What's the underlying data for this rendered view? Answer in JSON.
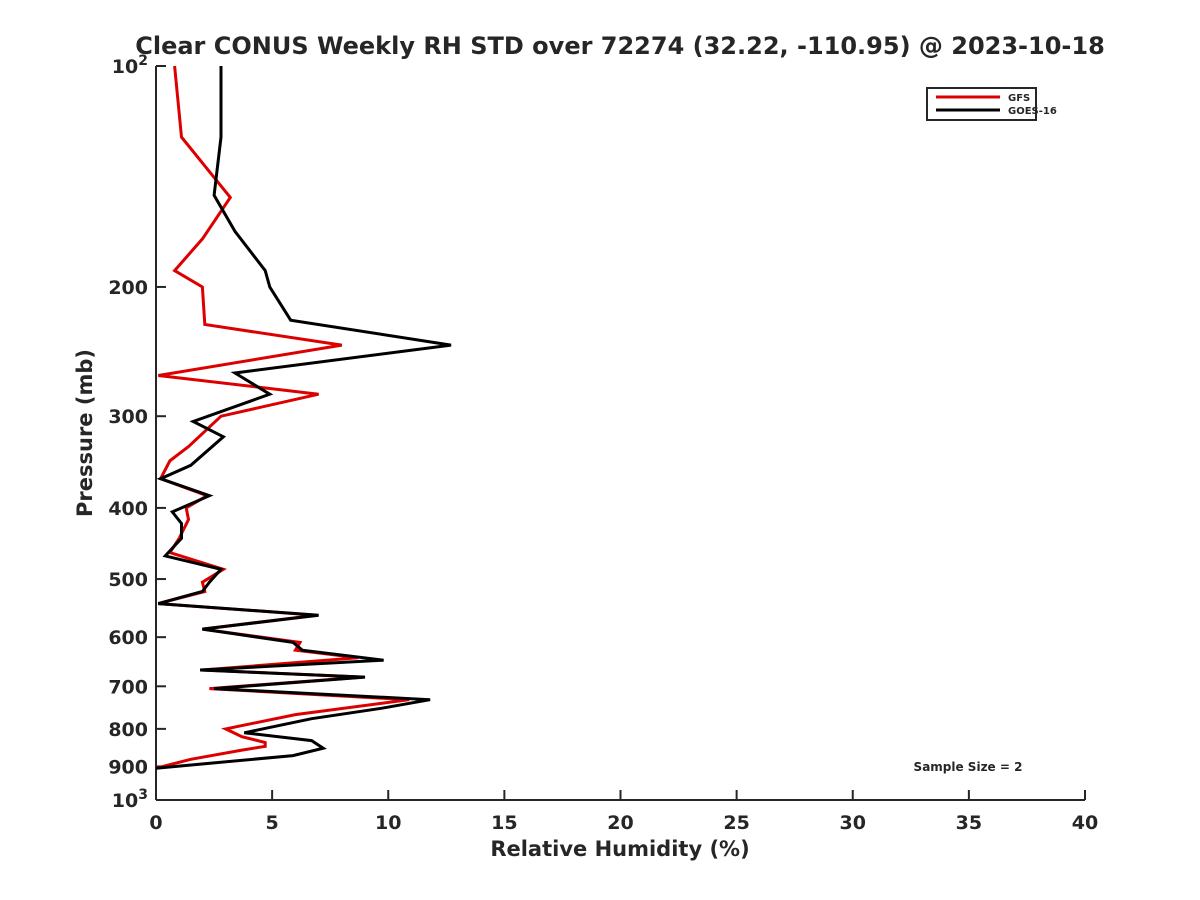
{
  "chart_data": {
    "type": "line",
    "title": "Clear CONUS Weekly RH STD over 72274 (32.22, -110.95) @ 2023-10-18",
    "xlabel": "Relative Humidity (%)",
    "ylabel": "Pressure (mb)",
    "xlim": [
      0,
      40
    ],
    "ylim": [
      100,
      1000
    ],
    "y_scale": "log",
    "y_reversed": true,
    "x_ticks": [
      "0",
      "5",
      "10",
      "15",
      "20",
      "25",
      "30",
      "35",
      "40"
    ],
    "y_ticks": [
      {
        "value": 100,
        "base": "10",
        "exp": "2"
      },
      {
        "value": 200,
        "label": "200"
      },
      {
        "value": 300,
        "label": "300"
      },
      {
        "value": 400,
        "label": "400"
      },
      {
        "value": 500,
        "label": "500"
      },
      {
        "value": 600,
        "label": "600"
      },
      {
        "value": 700,
        "label": "700"
      },
      {
        "value": 800,
        "label": "800"
      },
      {
        "value": 900,
        "label": "900"
      },
      {
        "value": 1000,
        "base": "10",
        "exp": "3"
      }
    ],
    "legend_position": "top-right",
    "annotation": "Sample Size = 2",
    "series": [
      {
        "name": "GFS",
        "color": "#dd0000",
        "points": [
          [
            0.8,
            100
          ],
          [
            1.1,
            125
          ],
          [
            3.2,
            151
          ],
          [
            2.0,
            172
          ],
          [
            0.8,
            190
          ],
          [
            2.0,
            200
          ],
          [
            2.1,
            225
          ],
          [
            8.0,
            240
          ],
          [
            0.1,
            264
          ],
          [
            7.0,
            280
          ],
          [
            2.8,
            300
          ],
          [
            1.4,
            330
          ],
          [
            0.6,
            345
          ],
          [
            0.2,
            365
          ],
          [
            2.2,
            385
          ],
          [
            1.3,
            400
          ],
          [
            1.4,
            415
          ],
          [
            1.0,
            440
          ],
          [
            0.6,
            460
          ],
          [
            2.9,
            485
          ],
          [
            2.0,
            505
          ],
          [
            2.1,
            520
          ],
          [
            0.1,
            540
          ],
          [
            6.9,
            560
          ],
          [
            2.0,
            585
          ],
          [
            6.2,
            610
          ],
          [
            6.0,
            625
          ],
          [
            8.7,
            640
          ],
          [
            2.0,
            665
          ],
          [
            8.9,
            680
          ],
          [
            2.3,
            705
          ],
          [
            10.9,
            730
          ],
          [
            6.0,
            765
          ],
          [
            3.0,
            800
          ],
          [
            3.7,
            820
          ],
          [
            4.7,
            835
          ],
          [
            4.7,
            845
          ],
          [
            3.7,
            855
          ],
          [
            1.5,
            880
          ],
          [
            0.0,
            905
          ]
        ]
      },
      {
        "name": "GOES-16",
        "color": "#000000",
        "points": [
          [
            2.8,
            100
          ],
          [
            2.8,
            125
          ],
          [
            2.5,
            150
          ],
          [
            3.4,
            168
          ],
          [
            4.7,
            190
          ],
          [
            4.9,
            200
          ],
          [
            5.8,
            222
          ],
          [
            12.7,
            240
          ],
          [
            3.4,
            262
          ],
          [
            4.9,
            280
          ],
          [
            1.6,
            305
          ],
          [
            2.9,
            320
          ],
          [
            1.5,
            350
          ],
          [
            0.2,
            365
          ],
          [
            2.3,
            385
          ],
          [
            0.7,
            405
          ],
          [
            1.1,
            420
          ],
          [
            1.1,
            440
          ],
          [
            0.4,
            465
          ],
          [
            2.8,
            485
          ],
          [
            2.3,
            505
          ],
          [
            2.0,
            520
          ],
          [
            0.1,
            540
          ],
          [
            7.0,
            560
          ],
          [
            2.0,
            585
          ],
          [
            5.9,
            610
          ],
          [
            6.3,
            625
          ],
          [
            9.8,
            645
          ],
          [
            1.9,
            665
          ],
          [
            9.0,
            680
          ],
          [
            2.5,
            705
          ],
          [
            11.8,
            730
          ],
          [
            9.7,
            750
          ],
          [
            6.7,
            775
          ],
          [
            3.8,
            810
          ],
          [
            6.7,
            830
          ],
          [
            7.2,
            850
          ],
          [
            5.9,
            870
          ],
          [
            0.0,
            905
          ]
        ]
      }
    ]
  }
}
